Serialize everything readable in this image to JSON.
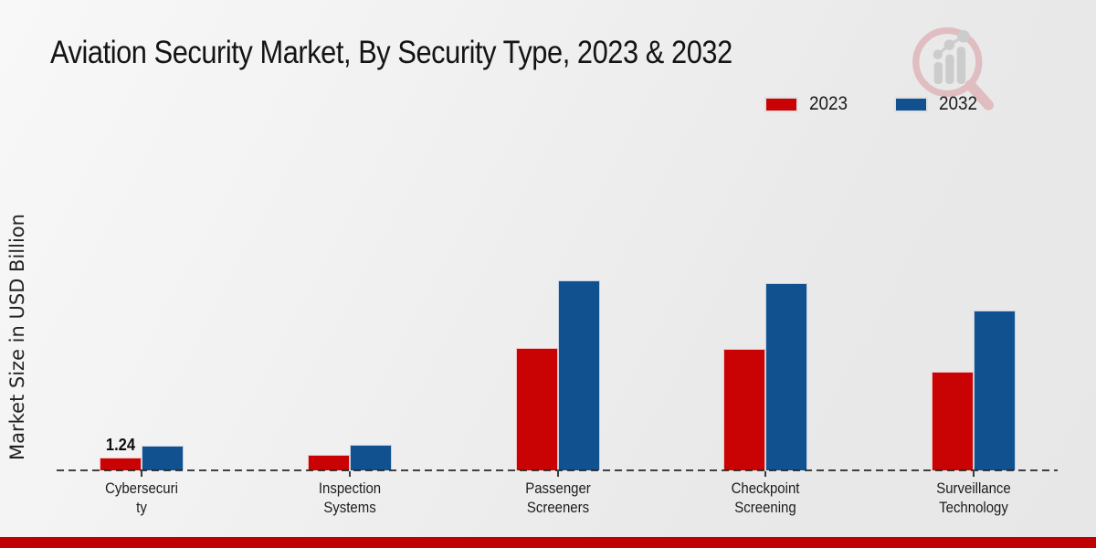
{
  "page": {
    "title": "Aviation Security Market, By Security Type, 2023 & 2032",
    "y_axis_label": "Market Size in USD Billion"
  },
  "legend": {
    "items": [
      {
        "label": "2023",
        "color": "#c90303"
      },
      {
        "label": "2032",
        "color": "#11518f"
      }
    ]
  },
  "colors": {
    "series_2023": "#c90303",
    "series_2032": "#11518f",
    "footer_bar": "#c00101",
    "axis_line": "#232323",
    "background": "#ededed"
  },
  "watermark": {
    "icon": "magnifier-bar-chart-logo",
    "circle_color": "#dfb6ba",
    "bars_color": "#c7c7c7"
  },
  "chart_data": {
    "type": "bar",
    "title": "Aviation Security Market, By Security Type, 2023 & 2032",
    "xlabel": "",
    "ylabel": "Market Size in USD Billion",
    "categories": [
      "Cybersecurity",
      "Inspection Systems",
      "Passenger Screeners",
      "Checkpoint Screening",
      "Surveillance Technology"
    ],
    "category_label_lines": [
      [
        "Cybersecuri",
        "ty"
      ],
      [
        "Inspection",
        "Systems"
      ],
      [
        "Passenger",
        "Screeners"
      ],
      [
        "Checkpoint",
        "Screening"
      ],
      [
        "Surveillance",
        "Technology"
      ]
    ],
    "series": [
      {
        "name": "2023",
        "color": "#c90303",
        "values": [
          1.24,
          1.5,
          11.9,
          11.8,
          9.6
        ],
        "value_labels": [
          "1.24",
          null,
          null,
          null,
          null
        ]
      },
      {
        "name": "2032",
        "color": "#11518f",
        "values": [
          2.35,
          2.48,
          18.4,
          18.1,
          15.45
        ],
        "value_labels": [
          null,
          null,
          null,
          null,
          null
        ]
      }
    ],
    "ylim": [
      0,
      22
    ],
    "grid": false,
    "axis_style": "dashed zero baseline only, no y-axis ticks",
    "legend_position": "top-right",
    "units": "USD Billion"
  }
}
